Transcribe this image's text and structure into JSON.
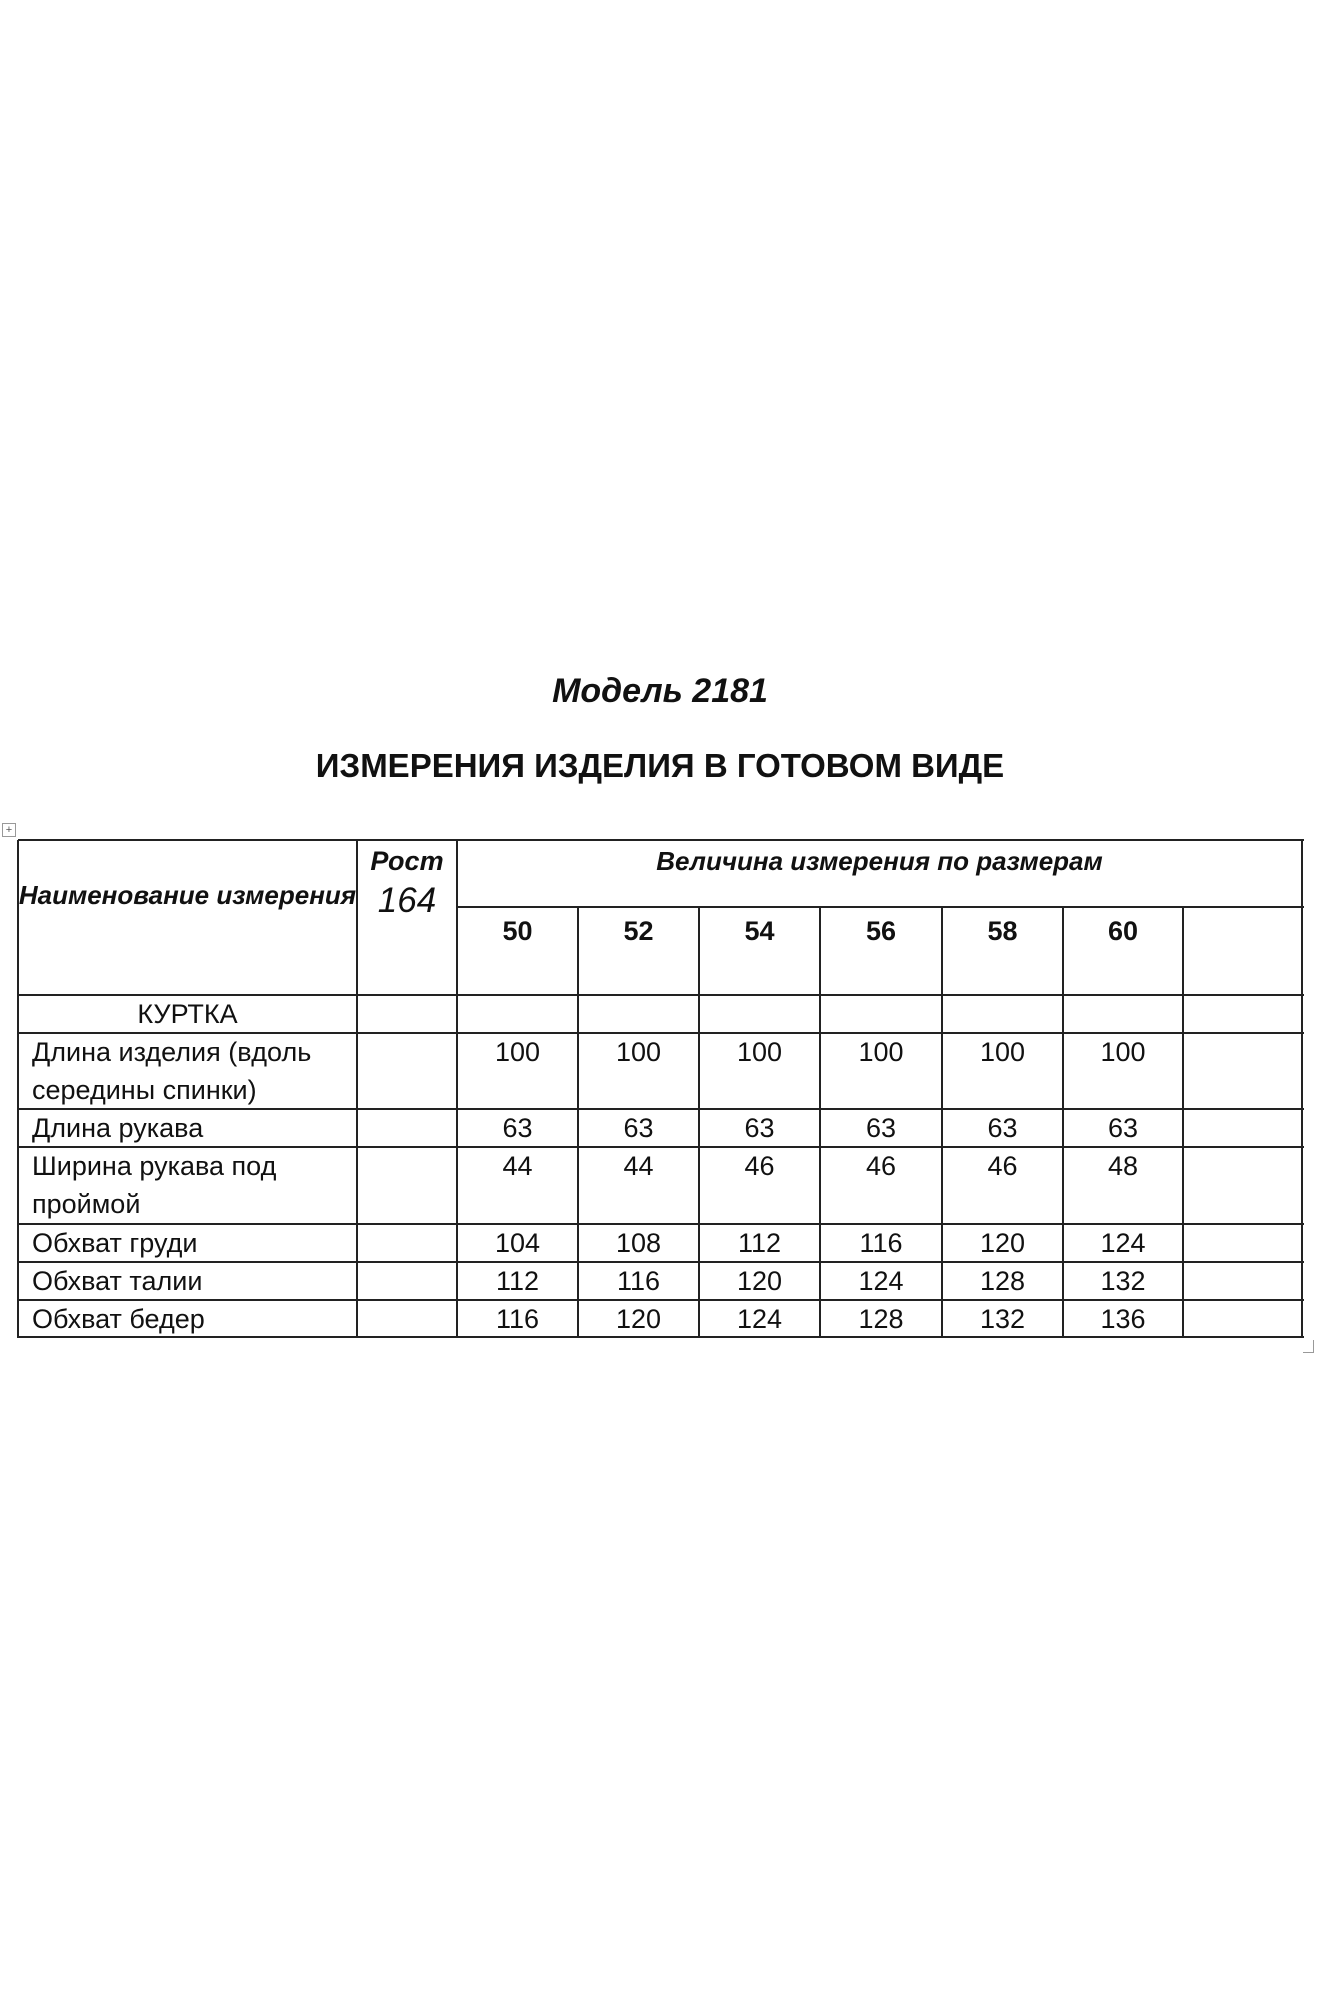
{
  "model_title": "Модель 2181",
  "heading": "ИЗМЕРЕНИЯ ИЗДЕЛИЯ В ГОТОВОМ ВИДЕ",
  "table": {
    "col_name_header": "Наименование измерения",
    "height_label": "Рост",
    "height_value": "164",
    "sizes_header": "Величина измерения по размерам",
    "sizes": [
      "50",
      "52",
      "54",
      "56",
      "58",
      "60"
    ],
    "section": "КУРТКА",
    "rows": [
      {
        "name": "Длина изделия (вдоль середины спинки)",
        "values": [
          "100",
          "100",
          "100",
          "100",
          "100",
          "100"
        ]
      },
      {
        "name": "Длина рукава",
        "values": [
          "63",
          "63",
          "63",
          "63",
          "63",
          "63"
        ]
      },
      {
        "name": "Ширина рукава под проймой",
        "values": [
          "44",
          "44",
          "46",
          "46",
          "46",
          "48"
        ]
      },
      {
        "name": "Обхват груди",
        "values": [
          "104",
          "108",
          "112",
          "116",
          "120",
          "124"
        ]
      },
      {
        "name": "Обхват талии",
        "values": [
          "112",
          "116",
          "120",
          "124",
          "128",
          "132"
        ]
      },
      {
        "name": "Обхват бедер",
        "values": [
          "116",
          "120",
          "124",
          "128",
          "132",
          "136"
        ]
      }
    ]
  }
}
